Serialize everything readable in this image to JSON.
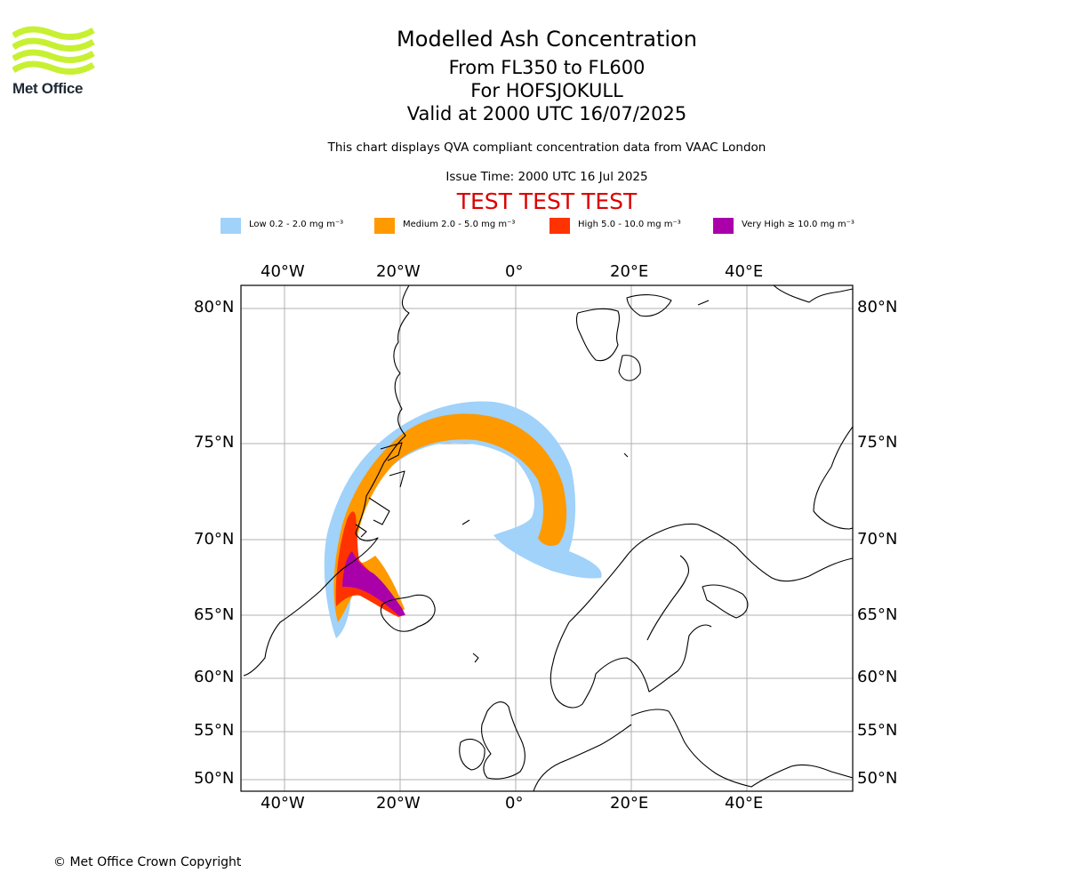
{
  "header": {
    "title": "Modelled Ash Concentration",
    "levels": "From FL350 to FL600",
    "volcano": "For HOFSJOKULL",
    "valid": "Valid at 2000 UTC 16/07/2025",
    "compliance": "This chart displays QVA compliant concentration data from VAAC London",
    "issue_time": "Issue Time: 2000 UTC 16 Jul 2025",
    "test_banner": "TEST TEST TEST"
  },
  "logo": {
    "text": "Met Office",
    "icon": "met-office-wave-logo",
    "color": "#c8f032"
  },
  "legend": [
    {
      "label": "Low 0.2 - 2.0 mg m⁻³",
      "color": "#a0d2fa"
    },
    {
      "label": "Medium 2.0 - 5.0 mg m⁻³",
      "color": "#ff9900"
    },
    {
      "label": "High 5.0 - 10.0 mg m⁻³",
      "color": "#ff3300"
    },
    {
      "label": "Very High  ≥  10.0 mg m⁻³",
      "color": "#aa00aa"
    }
  ],
  "map": {
    "longitude_labels": [
      "40°W",
      "20°W",
      "0°",
      "20°E",
      "40°E"
    ],
    "latitude_labels": [
      "80°N",
      "75°N",
      "70°N",
      "65°N",
      "60°N",
      "55°N",
      "50°N"
    ],
    "gridlines": true,
    "coastline_color": "#000000",
    "grid_color": "#b0b0b0"
  },
  "footer": {
    "copyright": "© Met Office Crown Copyright"
  }
}
